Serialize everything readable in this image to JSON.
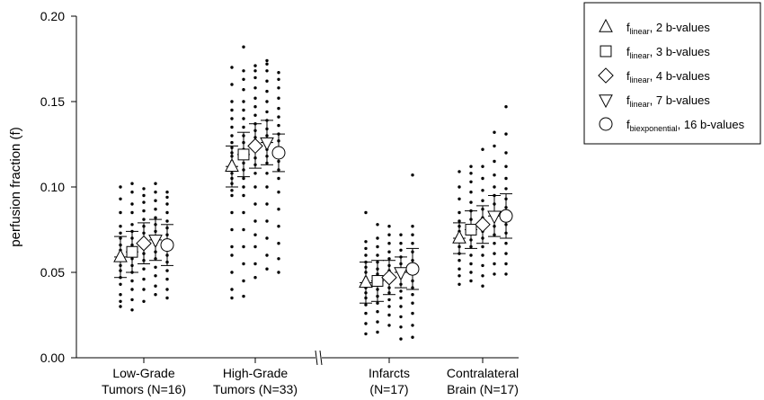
{
  "chart_data": {
    "type": "scatter",
    "ylabel": "perfusion fraction (f)",
    "ylim": [
      0,
      0.2
    ],
    "yticks": [
      "0.00",
      "0.05",
      "0.10",
      "0.15",
      "0.20"
    ],
    "axis_break_after_group": 1,
    "groups": [
      {
        "label_line1": "Low-Grade",
        "label_line2": "Tumors (N=16)"
      },
      {
        "label_line1": "High-Grade",
        "label_line2": "Tumors (N=33)"
      },
      {
        "label_line1": "Infarcts",
        "label_line2": "(N=17)"
      },
      {
        "label_line1": "Contralateral",
        "label_line2": "Brain (N=17)"
      }
    ],
    "series": [
      {
        "marker": "triangle-up",
        "legend_main": "f",
        "legend_sub": "linear",
        "legend_rest": ", 2 b-values",
        "mean": [
          0.059,
          0.112,
          0.044,
          0.07
        ],
        "error": [
          0.012,
          0.012,
          0.012,
          0.009
        ],
        "points": [
          [
            0.03,
            0.033,
            0.037,
            0.043,
            0.047,
            0.051,
            0.054,
            0.057,
            0.06,
            0.063,
            0.066,
            0.07,
            0.073,
            0.077,
            0.085,
            0.093,
            0.1
          ],
          [
            0.035,
            0.04,
            0.05,
            0.06,
            0.065,
            0.075,
            0.085,
            0.095,
            0.098,
            0.102,
            0.105,
            0.108,
            0.112,
            0.115,
            0.118,
            0.12,
            0.123,
            0.126,
            0.13,
            0.135,
            0.14,
            0.145,
            0.15,
            0.16,
            0.17
          ],
          [
            0.014,
            0.02,
            0.026,
            0.031,
            0.035,
            0.038,
            0.041,
            0.044,
            0.047,
            0.05,
            0.053,
            0.056,
            0.06,
            0.064,
            0.068,
            0.085
          ],
          [
            0.043,
            0.048,
            0.052,
            0.057,
            0.061,
            0.065,
            0.068,
            0.071,
            0.074,
            0.077,
            0.08,
            0.085,
            0.093,
            0.1,
            0.109
          ]
        ]
      },
      {
        "marker": "square",
        "legend_main": "f",
        "legend_sub": "linear",
        "legend_rest": ", 3 b-values",
        "mean": [
          0.062,
          0.119,
          0.045,
          0.075
        ],
        "error": [
          0.012,
          0.013,
          0.012,
          0.011
        ],
        "points": [
          [
            0.028,
            0.034,
            0.04,
            0.045,
            0.05,
            0.054,
            0.058,
            0.062,
            0.066,
            0.07,
            0.074,
            0.078,
            0.085,
            0.09,
            0.097,
            0.102
          ],
          [
            0.036,
            0.045,
            0.055,
            0.065,
            0.075,
            0.085,
            0.095,
            0.1,
            0.105,
            0.11,
            0.114,
            0.118,
            0.122,
            0.126,
            0.13,
            0.135,
            0.14,
            0.145,
            0.15,
            0.157,
            0.163,
            0.168,
            0.182
          ],
          [
            0.015,
            0.021,
            0.027,
            0.032,
            0.036,
            0.04,
            0.043,
            0.046,
            0.049,
            0.052,
            0.056,
            0.06,
            0.065,
            0.07,
            0.078
          ],
          [
            0.045,
            0.05,
            0.055,
            0.06,
            0.065,
            0.069,
            0.073,
            0.077,
            0.081,
            0.086,
            0.091,
            0.097,
            0.103,
            0.108,
            0.112
          ]
        ]
      },
      {
        "marker": "diamond",
        "legend_main": "f",
        "legend_sub": "linear",
        "legend_rest": ", 4 b-values",
        "mean": [
          0.067,
          0.124,
          0.047,
          0.078
        ],
        "error": [
          0.012,
          0.013,
          0.01,
          0.011
        ],
        "points": [
          [
            0.033,
            0.04,
            0.046,
            0.052,
            0.057,
            0.061,
            0.065,
            0.069,
            0.073,
            0.077,
            0.081,
            0.086,
            0.091,
            0.095,
            0.099
          ],
          [
            0.047,
            0.055,
            0.065,
            0.072,
            0.08,
            0.09,
            0.1,
            0.108,
            0.113,
            0.117,
            0.121,
            0.125,
            0.129,
            0.133,
            0.137,
            0.142,
            0.147,
            0.152,
            0.158,
            0.164,
            0.168,
            0.171
          ],
          [
            0.019,
            0.025,
            0.03,
            0.034,
            0.038,
            0.041,
            0.045,
            0.048,
            0.051,
            0.054,
            0.058,
            0.062,
            0.067,
            0.072,
            0.077
          ],
          [
            0.042,
            0.048,
            0.054,
            0.06,
            0.065,
            0.07,
            0.074,
            0.078,
            0.082,
            0.087,
            0.092,
            0.098,
            0.105,
            0.112,
            0.122
          ]
        ]
      },
      {
        "marker": "triangle-down",
        "legend_main": "f",
        "legend_sub": "linear",
        "legend_rest": ", 7 b-values",
        "mean": [
          0.069,
          0.126,
          0.05,
          0.083
        ],
        "error": [
          0.012,
          0.013,
          0.009,
          0.012
        ],
        "points": [
          [
            0.037,
            0.042,
            0.048,
            0.053,
            0.058,
            0.062,
            0.066,
            0.07,
            0.074,
            0.078,
            0.082,
            0.087,
            0.092,
            0.097,
            0.102
          ],
          [
            0.052,
            0.06,
            0.07,
            0.08,
            0.09,
            0.1,
            0.108,
            0.114,
            0.118,
            0.122,
            0.126,
            0.13,
            0.134,
            0.139,
            0.144,
            0.15,
            0.156,
            0.162,
            0.168,
            0.172,
            0.174
          ],
          [
            0.011,
            0.018,
            0.024,
            0.03,
            0.035,
            0.039,
            0.043,
            0.047,
            0.051,
            0.055,
            0.059,
            0.063,
            0.067,
            0.072
          ],
          [
            0.049,
            0.055,
            0.061,
            0.067,
            0.072,
            0.077,
            0.081,
            0.085,
            0.09,
            0.095,
            0.1,
            0.107,
            0.115,
            0.124,
            0.132
          ]
        ]
      },
      {
        "marker": "circle",
        "legend_main": "f",
        "legend_sub": "biexponential",
        "legend_rest": ", 16 b-values",
        "mean": [
          0.066,
          0.12,
          0.052,
          0.083
        ],
        "error": [
          0.012,
          0.011,
          0.012,
          0.013
        ],
        "points": [
          [
            0.035,
            0.04,
            0.046,
            0.051,
            0.056,
            0.06,
            0.064,
            0.068,
            0.072,
            0.076,
            0.08,
            0.085,
            0.09,
            0.094,
            0.097
          ],
          [
            0.05,
            0.058,
            0.067,
            0.077,
            0.087,
            0.097,
            0.105,
            0.11,
            0.115,
            0.119,
            0.123,
            0.127,
            0.131,
            0.136,
            0.141,
            0.146,
            0.152,
            0.158,
            0.163,
            0.167
          ],
          [
            0.012,
            0.019,
            0.026,
            0.032,
            0.037,
            0.041,
            0.045,
            0.049,
            0.053,
            0.057,
            0.062,
            0.067,
            0.072,
            0.077,
            0.107
          ],
          [
            0.049,
            0.055,
            0.061,
            0.067,
            0.073,
            0.078,
            0.083,
            0.088,
            0.093,
            0.099,
            0.105,
            0.112,
            0.12,
            0.131,
            0.147
          ]
        ]
      }
    ]
  }
}
